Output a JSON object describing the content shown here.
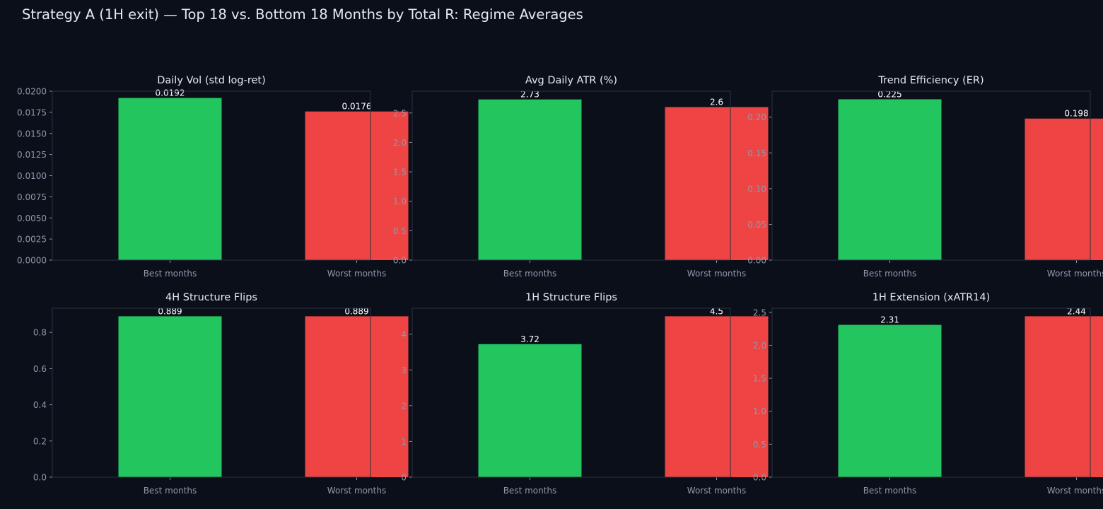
{
  "figure": {
    "suptitle": "Strategy A (1H exit) — Top 18 vs. Bottom 18 Months by Total R: Regime Averages",
    "background": "#0b0f19",
    "axes_border_color": "#2a3040",
    "text_color": "#e6e9ef",
    "tick_color": "#8f98ab",
    "value_label_color": "#ffffff"
  },
  "chart_data": [
    {
      "type": "bar",
      "title": "Daily Vol (std log-ret)",
      "categories": [
        "Best months",
        "Worst months"
      ],
      "values": [
        0.0192,
        0.0176
      ],
      "value_labels": [
        "0.0192",
        "0.0176"
      ],
      "colors": [
        "#22c55e",
        "#ef4444"
      ],
      "ylim": [
        0,
        0.02
      ],
      "yticks": [
        0.0,
        0.0025,
        0.005,
        0.0075,
        0.01,
        0.0125,
        0.015,
        0.0175,
        0.02
      ],
      "ytick_labels": [
        "0.0000",
        "0.0025",
        "0.0050",
        "0.0075",
        "0.0100",
        "0.0125",
        "0.0150",
        "0.0175",
        "0.0200"
      ],
      "grid": false
    },
    {
      "type": "bar",
      "title": "Avg Daily ATR (%)",
      "categories": [
        "Best months",
        "Worst months"
      ],
      "values": [
        2.73,
        2.6
      ],
      "value_labels": [
        "2.73",
        "2.6"
      ],
      "colors": [
        "#22c55e",
        "#ef4444"
      ],
      "ylim": [
        0,
        2.87
      ],
      "yticks": [
        0.0,
        0.5,
        1.0,
        1.5,
        2.0,
        2.5
      ],
      "ytick_labels": [
        "0.0",
        "0.5",
        "1.0",
        "1.5",
        "2.0",
        "2.5"
      ],
      "grid": false
    },
    {
      "type": "bar",
      "title": "Trend Efficiency (ER)",
      "categories": [
        "Best months",
        "Worst months"
      ],
      "values": [
        0.225,
        0.198
      ],
      "value_labels": [
        "0.225",
        "0.198"
      ],
      "colors": [
        "#22c55e",
        "#ef4444"
      ],
      "ylim": [
        0,
        0.2363
      ],
      "yticks": [
        0.0,
        0.05,
        0.1,
        0.15,
        0.2
      ],
      "ytick_labels": [
        "0.00",
        "0.05",
        "0.10",
        "0.15",
        "0.20"
      ],
      "grid": false
    },
    {
      "type": "bar",
      "title": "4H Structure Flips",
      "categories": [
        "Best months",
        "Worst months"
      ],
      "values": [
        0.889,
        0.889
      ],
      "value_labels": [
        "0.889",
        "0.889"
      ],
      "colors": [
        "#22c55e",
        "#ef4444"
      ],
      "ylim": [
        0,
        0.9335
      ],
      "yticks": [
        0.0,
        0.2,
        0.4,
        0.6,
        0.8
      ],
      "ytick_labels": [
        "0.0",
        "0.2",
        "0.4",
        "0.6",
        "0.8"
      ],
      "grid": false
    },
    {
      "type": "bar",
      "title": "1H Structure Flips",
      "categories": [
        "Best months",
        "Worst months"
      ],
      "values": [
        3.72,
        4.5
      ],
      "value_labels": [
        "3.72",
        "4.5"
      ],
      "colors": [
        "#22c55e",
        "#ef4444"
      ],
      "ylim": [
        0,
        4.725
      ],
      "yticks": [
        0,
        1,
        2,
        3,
        4
      ],
      "ytick_labels": [
        "0",
        "1",
        "2",
        "3",
        "4"
      ],
      "grid": false
    },
    {
      "type": "bar",
      "title": "1H Extension (xATR14)",
      "categories": [
        "Best months",
        "Worst months"
      ],
      "values": [
        2.31,
        2.44
      ],
      "value_labels": [
        "2.31",
        "2.44"
      ],
      "colors": [
        "#22c55e",
        "#ef4444"
      ],
      "ylim": [
        0,
        2.562
      ],
      "yticks": [
        0.0,
        0.5,
        1.0,
        1.5,
        2.0,
        2.5
      ],
      "ytick_labels": [
        "0.0",
        "0.5",
        "1.0",
        "1.5",
        "2.0",
        "2.5"
      ],
      "grid": false
    }
  ]
}
